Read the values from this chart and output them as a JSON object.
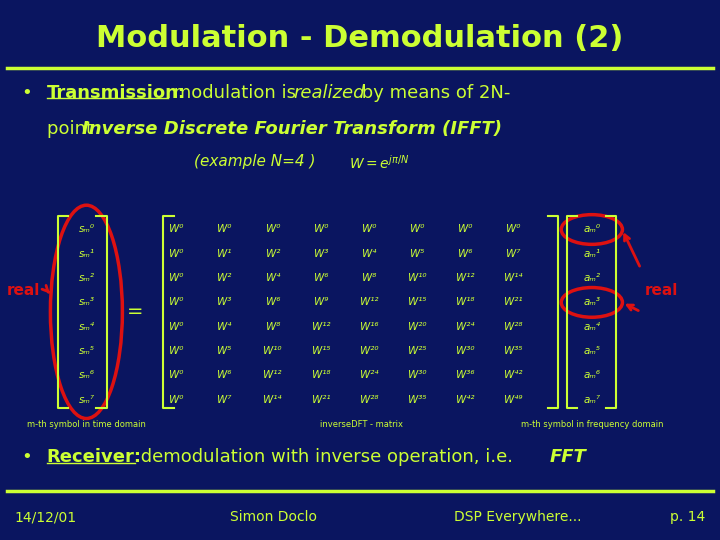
{
  "bg_color": "#0a1560",
  "title_color": "#ccff33",
  "text_color": "#ccff33",
  "red_color": "#dd1111",
  "title": "Modulation - Demodulation (2)",
  "title_fontsize": 22,
  "matrix_rows": [
    [
      "W⁰",
      "W⁰",
      "W⁰",
      "W⁰",
      "W⁰",
      "W⁰",
      "W⁰",
      "W⁰"
    ],
    [
      "W⁰",
      "W¹",
      "W²",
      "W³",
      "W⁴",
      "W⁵",
      "W⁶",
      "W⁷"
    ],
    [
      "W⁰",
      "W²",
      "W⁴",
      "W⁶",
      "W⁸",
      "W¹⁰",
      "W¹²",
      "W¹⁴"
    ],
    [
      "W⁰",
      "W³",
      "W⁶",
      "W⁹",
      "W¹²",
      "W¹⁵",
      "W¹⁸",
      "W²¹"
    ],
    [
      "W⁰",
      "W⁴",
      "W⁸",
      "W¹²",
      "W¹⁶",
      "W²⁰",
      "W²⁴",
      "W²⁸"
    ],
    [
      "W⁰",
      "W⁵",
      "W¹⁰",
      "W¹⁵",
      "W²⁰",
      "W²⁵",
      "W³⁰",
      "W³⁵"
    ],
    [
      "W⁰",
      "W⁶",
      "W¹²",
      "W¹⁸",
      "W²⁴",
      "W³⁰",
      "W³⁶",
      "W⁴²"
    ],
    [
      "W⁰",
      "W⁷",
      "W¹⁴",
      "W²¹",
      "W²⁸",
      "W³⁵",
      "W⁴²",
      "W⁴⁹"
    ]
  ],
  "left_vec": [
    "sₘ⁰",
    "sₘ¹",
    "sₘ²",
    "sₘ³",
    "sₘ⁴",
    "sₘ⁵",
    "sₘ⁶",
    "sₘ⁷"
  ],
  "right_vec": [
    "aₘ⁰",
    "aₘ¹",
    "aₘ²",
    "aₘ³",
    "aₘ⁴",
    "aₘ⁵",
    "aₘ⁶",
    "aₘ⁷"
  ],
  "left_label": "m-th symbol in time domain",
  "center_label": "inverseDFT - matrix",
  "right_label": "m-th symbol in frequency domain",
  "footer_left": "14/12/01",
  "footer_center": "Simon Doclo",
  "footer_right_left": "DSP Everywhere...",
  "footer_right": "p. 14",
  "footer_fontsize": 10
}
